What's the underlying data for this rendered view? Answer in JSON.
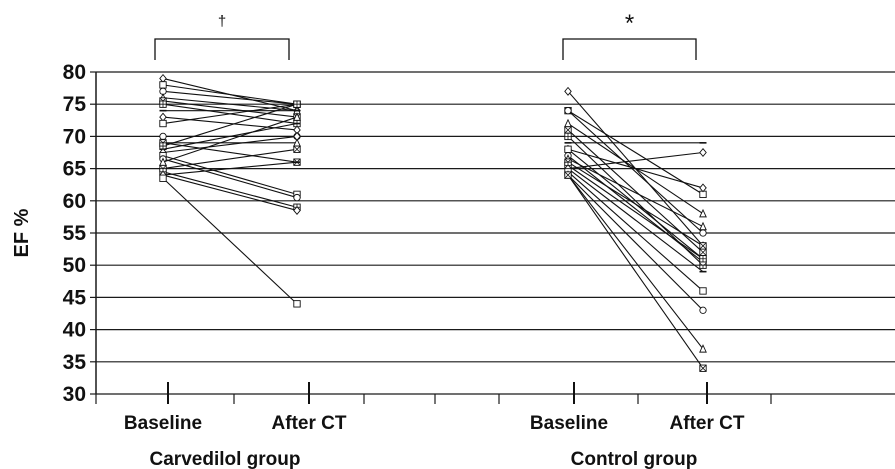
{
  "chart_data": {
    "type": "line",
    "title": "",
    "ylabel": "EF %",
    "ylim": [
      30,
      80
    ],
    "yticks": [
      30,
      35,
      40,
      45,
      50,
      55,
      60,
      65,
      70,
      75,
      80
    ],
    "grid": true,
    "groups": [
      {
        "name": "Carvedilol group",
        "categories": [
          "Baseline",
          "After CT"
        ],
        "significance_marker": "†",
        "pairs": [
          [
            79,
            74
          ],
          [
            78,
            75
          ],
          [
            77,
            75
          ],
          [
            76,
            74
          ],
          [
            75.5,
            73
          ],
          [
            75,
            72
          ],
          [
            74,
            74
          ],
          [
            73,
            71
          ],
          [
            72,
            75
          ],
          [
            70,
            70
          ],
          [
            69,
            69
          ],
          [
            69,
            66
          ],
          [
            68.5,
            75
          ],
          [
            68,
            72
          ],
          [
            67.5,
            70
          ],
          [
            67,
            61
          ],
          [
            66.5,
            60.5
          ],
          [
            66,
            73
          ],
          [
            65,
            68
          ],
          [
            64.5,
            59
          ],
          [
            64,
            66
          ],
          [
            64,
            58.5
          ],
          [
            63.5,
            44
          ]
        ]
      },
      {
        "name": "Control group",
        "categories": [
          "Baseline",
          "After CT"
        ],
        "significance_marker": "*",
        "pairs": [
          [
            77,
            53
          ],
          [
            74,
            61
          ],
          [
            74,
            55
          ],
          [
            72,
            58
          ],
          [
            71,
            52
          ],
          [
            70,
            50
          ],
          [
            69,
            69
          ],
          [
            68,
            62
          ],
          [
            68,
            51
          ],
          [
            67,
            50.5
          ],
          [
            66.5,
            56
          ],
          [
            66,
            53
          ],
          [
            65.5,
            51
          ],
          [
            65,
            49
          ],
          [
            65,
            67.5
          ],
          [
            64.5,
            46
          ],
          [
            64,
            43
          ],
          [
            64,
            37
          ],
          [
            64,
            34
          ]
        ]
      }
    ]
  }
}
